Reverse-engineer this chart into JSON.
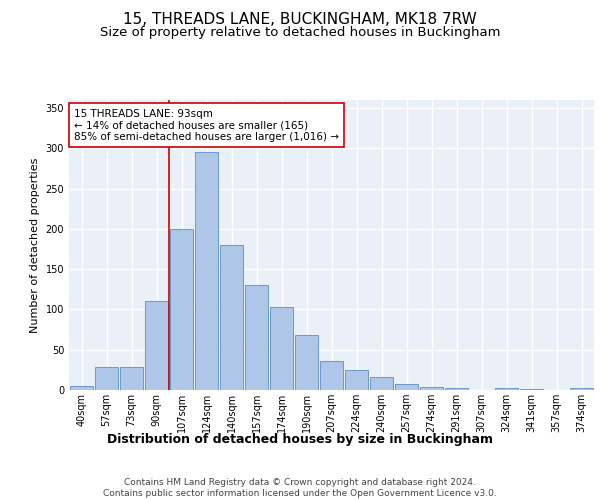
{
  "title": "15, THREADS LANE, BUCKINGHAM, MK18 7RW",
  "subtitle": "Size of property relative to detached houses in Buckingham",
  "xlabel": "Distribution of detached houses by size in Buckingham",
  "ylabel": "Number of detached properties",
  "categories": [
    "40sqm",
    "57sqm",
    "73sqm",
    "90sqm",
    "107sqm",
    "124sqm",
    "140sqm",
    "157sqm",
    "174sqm",
    "190sqm",
    "207sqm",
    "224sqm",
    "240sqm",
    "257sqm",
    "274sqm",
    "291sqm",
    "307sqm",
    "324sqm",
    "341sqm",
    "357sqm",
    "374sqm"
  ],
  "values": [
    5,
    28,
    28,
    110,
    200,
    295,
    180,
    130,
    103,
    68,
    36,
    25,
    16,
    8,
    4,
    3,
    0,
    3,
    1,
    0,
    2
  ],
  "bar_color": "#aec6e8",
  "bar_edgecolor": "#5a8fc2",
  "bg_color": "#eaf0f8",
  "grid_color": "#ffffff",
  "vline_color": "#cc0000",
  "annotation_text": "15 THREADS LANE: 93sqm\n← 14% of detached houses are smaller (165)\n85% of semi-detached houses are larger (1,016) →",
  "annotation_box_color": "#ffffff",
  "annotation_box_edgecolor": "#cc0000",
  "footer_text": "Contains HM Land Registry data © Crown copyright and database right 2024.\nContains public sector information licensed under the Open Government Licence v3.0.",
  "ylim": [
    0,
    360
  ],
  "yticks": [
    0,
    50,
    100,
    150,
    200,
    250,
    300,
    350
  ],
  "title_fontsize": 11,
  "subtitle_fontsize": 9.5,
  "xlabel_fontsize": 9,
  "ylabel_fontsize": 8,
  "tick_fontsize": 7,
  "annotation_fontsize": 7.5,
  "footer_fontsize": 6.5
}
